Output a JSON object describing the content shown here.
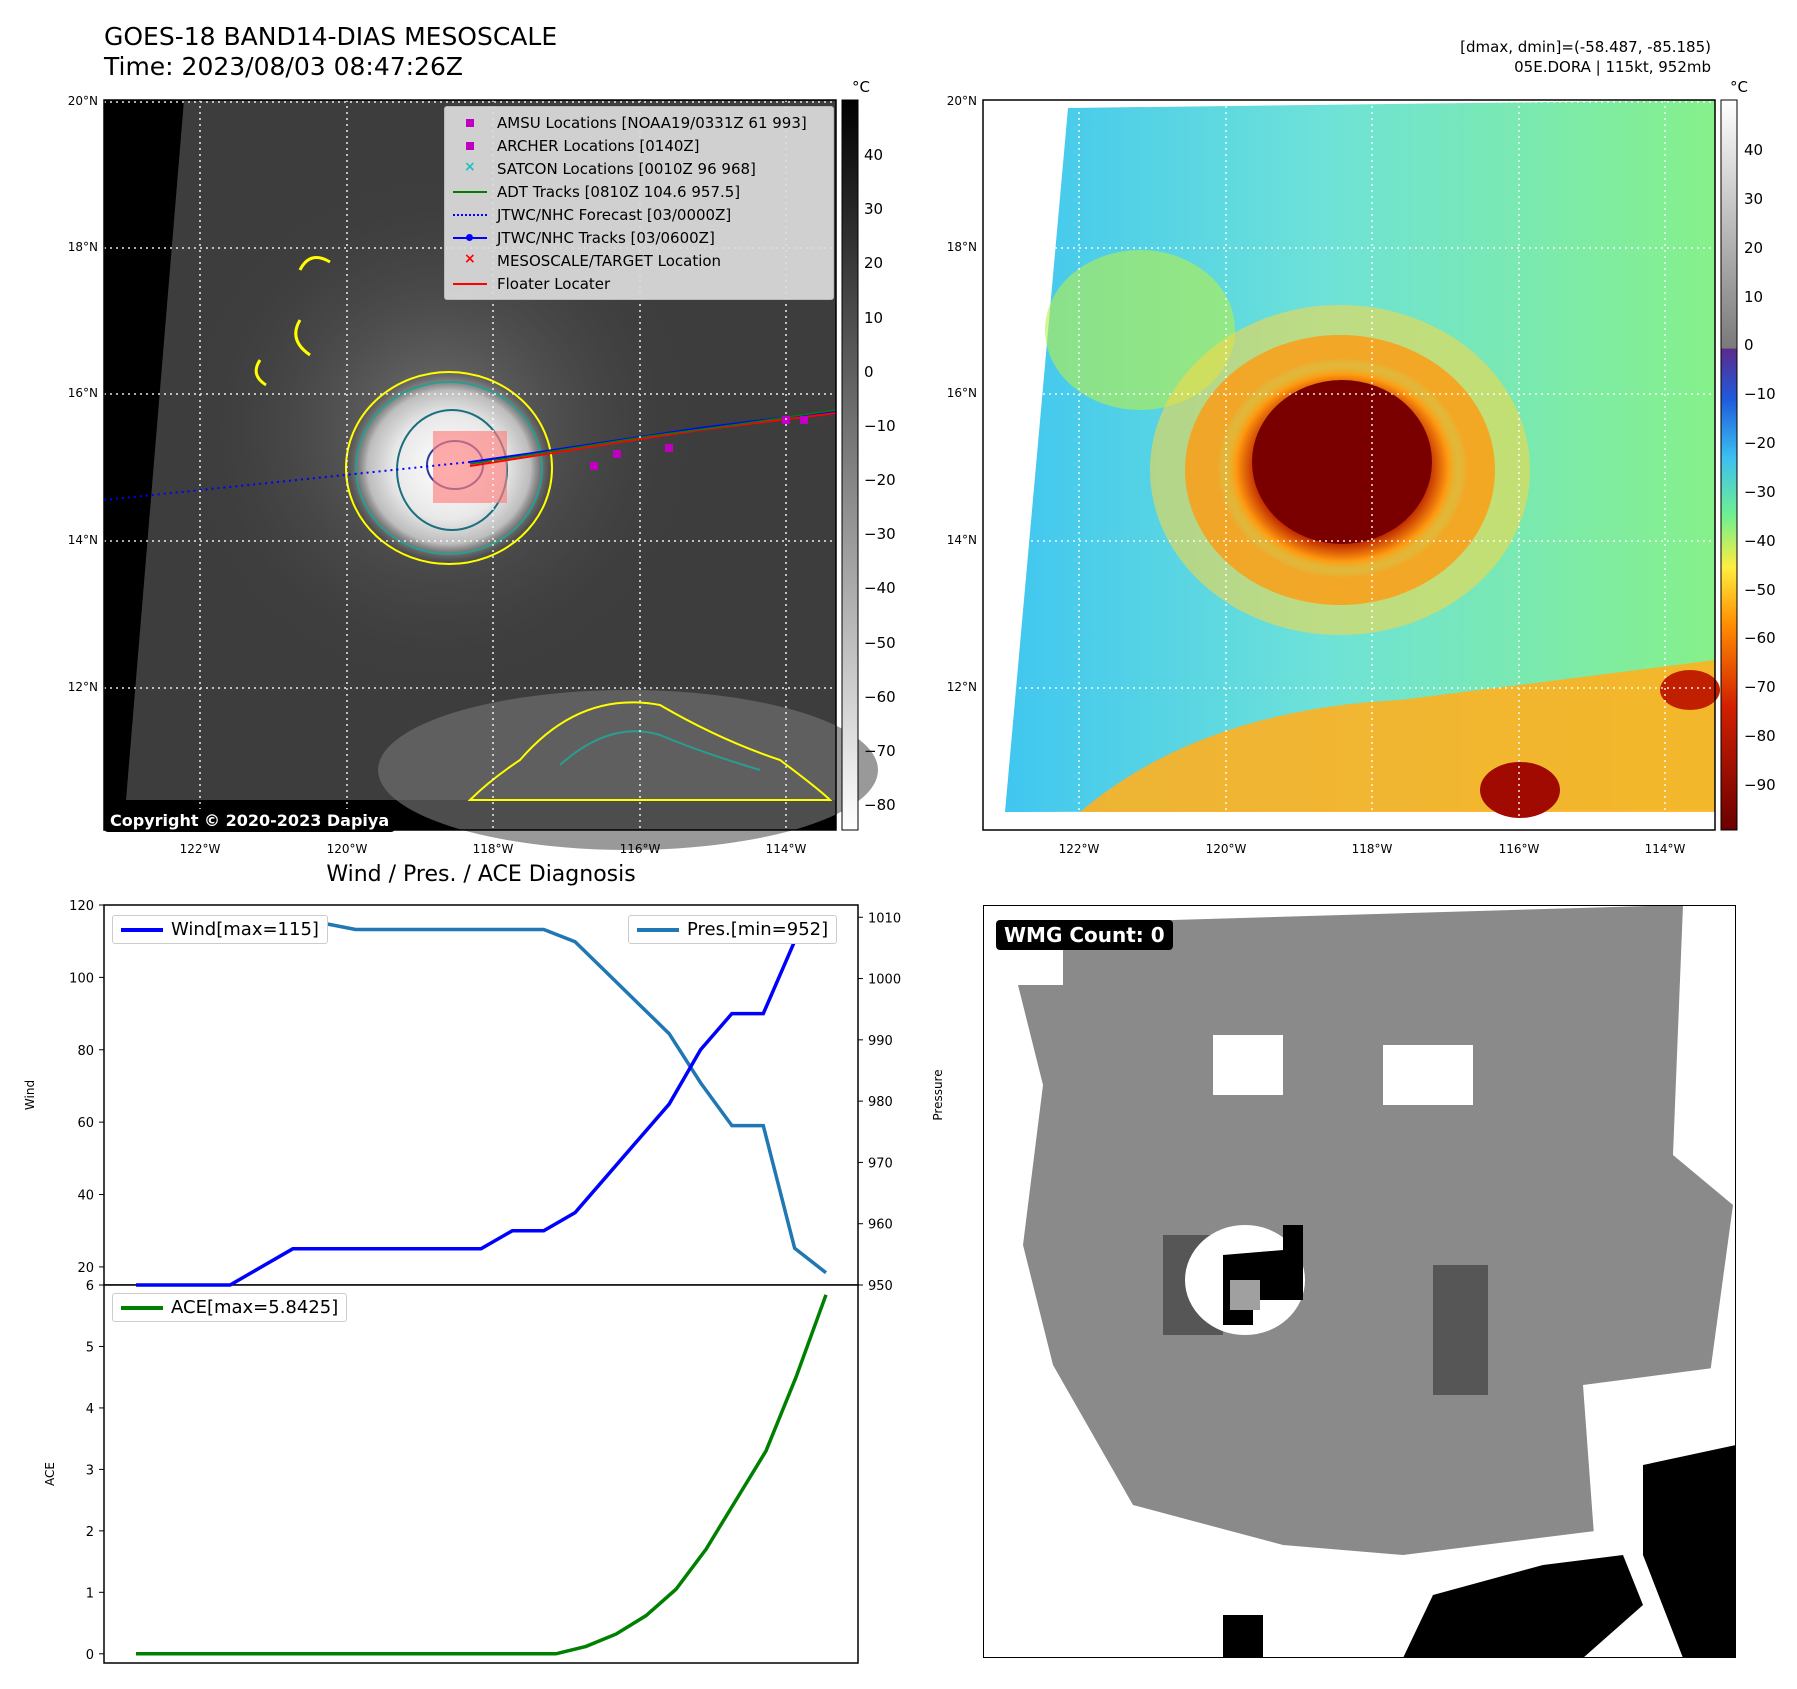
{
  "header": {
    "title_line1": "GOES-18 BAND14-DIAS MESOSCALE",
    "title_line2": "Time: 2023/08/03 08:47:26Z",
    "dminmax": "[dmax, dmin]=(-58.487, -85.185)",
    "storm": "05E.DORA | 115kt, 952mb"
  },
  "colors": {
    "wind": "#0000ff",
    "pressure": "#1f77b4",
    "ace": "#008000",
    "contour_yellow": "#ffff00",
    "contour_teal": "#2a9d8f",
    "floater": "#ff0000",
    "magenta": "#c000c0"
  },
  "map_axes": {
    "lat_ticks": [
      "20°N",
      "18°N",
      "16°N",
      "14°N",
      "12°N"
    ],
    "lon_ticks": [
      "122°W",
      "120°W",
      "118°W",
      "116°W",
      "114°W"
    ],
    "unit": "°C"
  },
  "left_map": {
    "colorbar_ticks": [
      "40",
      "30",
      "20",
      "10",
      "0",
      "−10",
      "−20",
      "−30",
      "−40",
      "−50",
      "−60",
      "−70",
      "−80"
    ],
    "copyright": "Copyright © 2020-2023 Dapiya",
    "legend": [
      {
        "label": "AMSU Locations [NOAA19/0331Z 61 993]",
        "icon": "magenta-square"
      },
      {
        "label": "ARCHER Locations [0140Z]",
        "icon": "magenta-square"
      },
      {
        "label": "SATCON Locations [0010Z 96 968]",
        "icon": "cyan-x"
      },
      {
        "label": "ADT Tracks [0810Z 104.6 957.5]",
        "icon": "green-line"
      },
      {
        "label": "JTWC/NHC Forecast [03/0000Z]",
        "icon": "blue-dotted-line"
      },
      {
        "label": "JTWC/NHC Tracks [03/0600Z]",
        "icon": "blue-line-dot"
      },
      {
        "label": "MESOSCALE/TARGET Location",
        "icon": "red-x"
      },
      {
        "label": "Floater Locater",
        "icon": "red-line"
      }
    ]
  },
  "right_map": {
    "colorbar_ticks": [
      "40",
      "30",
      "20",
      "10",
      "0",
      "−10",
      "−20",
      "−30",
      "−40",
      "−50",
      "−60",
      "−70",
      "−80",
      "−90"
    ]
  },
  "diagnosis_title": "Wind / Pres. / ACE Diagnosis",
  "wmg_label": "WMG Count: 0",
  "chart_data": [
    {
      "type": "line",
      "title": "Wind / Pres. / ACE Diagnosis",
      "ylabel": "Wind",
      "y2label": "Pressure",
      "ylim": [
        15,
        120
      ],
      "y2lim": [
        950,
        1012
      ],
      "yticks": [
        20,
        40,
        60,
        80,
        100,
        120
      ],
      "y2ticks": [
        950,
        960,
        970,
        980,
        990,
        1000,
        1010
      ],
      "series": [
        {
          "name": "Wind[max=115]",
          "axis": "left",
          "values": [
            15,
            15,
            15,
            15,
            20,
            25,
            25,
            25,
            25,
            25,
            25,
            25,
            30,
            30,
            35,
            45,
            55,
            65,
            80,
            90,
            90,
            110,
            115
          ]
        },
        {
          "name": "Pres.[min=952]",
          "axis": "right",
          "values": [
            1010,
            1010,
            1010,
            1010,
            1009,
            1009,
            1009,
            1008,
            1008,
            1008,
            1008,
            1008,
            1008,
            1008,
            1006,
            1001,
            996,
            991,
            983,
            976,
            976,
            956,
            952
          ]
        }
      ]
    },
    {
      "type": "line",
      "ylabel": "ACE",
      "ylim": [
        -0.15,
        6.0
      ],
      "yticks": [
        0,
        1,
        2,
        3,
        4,
        5,
        6
      ],
      "series": [
        {
          "name": "ACE[max=5.8425]",
          "values": [
            0,
            0,
            0,
            0,
            0,
            0,
            0,
            0,
            0,
            0,
            0,
            0,
            0,
            0,
            0,
            0.12,
            0.32,
            0.62,
            1.05,
            1.7,
            2.5,
            3.3,
            4.5,
            5.84
          ]
        }
      ]
    }
  ]
}
